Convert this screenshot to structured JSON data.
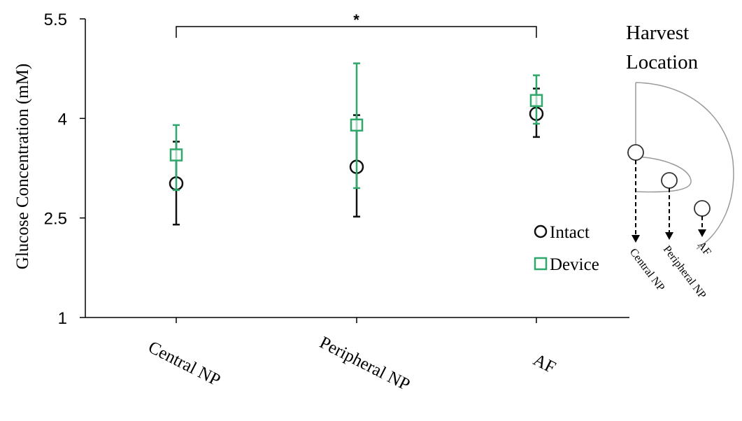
{
  "chart_data": {
    "type": "scatter",
    "title": "",
    "xlabel": "",
    "ylabel": "Glucose Concentration (mM)",
    "categories": [
      "Central NP",
      "Peripheral NP",
      "AF"
    ],
    "yticks": [
      "1",
      "2.5",
      "4",
      "5.5"
    ],
    "ylim": [
      1,
      5.5
    ],
    "grid": false,
    "legend_position": "right",
    "series": [
      {
        "name": "Intact",
        "marker": "circle",
        "color": "#111111",
        "values": [
          3.02,
          3.27,
          4.07
        ],
        "error_low": [
          2.4,
          2.52,
          3.72
        ],
        "error_high": [
          3.65,
          4.05,
          4.45
        ]
      },
      {
        "name": "Device",
        "marker": "square",
        "color": "#2ea86b",
        "values": [
          3.45,
          3.9,
          4.27
        ],
        "error_low": [
          2.92,
          2.95,
          3.92
        ],
        "error_high": [
          3.9,
          4.83,
          4.65
        ]
      }
    ],
    "significance": {
      "from": "Central NP",
      "to": "AF",
      "label": "*"
    }
  },
  "inset": {
    "title_lines": [
      "Harvest",
      "Location"
    ],
    "labels": [
      "Central NP",
      "Peripheral NP",
      "AF"
    ]
  }
}
